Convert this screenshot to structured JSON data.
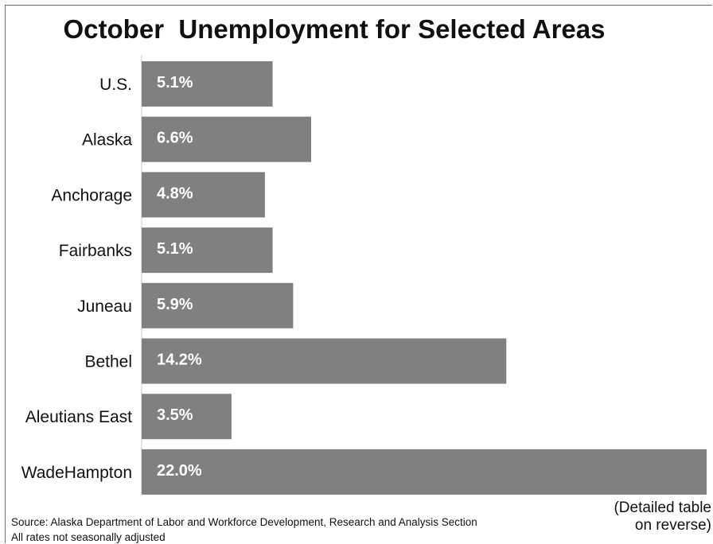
{
  "chart_data": {
    "type": "bar",
    "orientation": "horizontal",
    "title": "October  Unemployment for Selected Areas",
    "categories": [
      "U.S.",
      "Alaska",
      "Anchorage",
      "Fairbanks",
      "Juneau",
      "Bethel",
      "Aleutians East",
      "WadeHampton"
    ],
    "values": [
      5.1,
      6.6,
      4.8,
      5.1,
      5.9,
      14.2,
      3.5,
      22.0
    ],
    "value_labels": [
      "5.1%",
      "6.6%",
      "4.8%",
      "5.1%",
      "5.9%",
      "14.2%",
      "3.5%",
      "22.0%"
    ],
    "xlim": [
      0,
      22.0
    ],
    "grid": false,
    "colors": {
      "bar": "#808080",
      "bar_label": "#ffffff"
    }
  },
  "footer": {
    "source": "Source: Alaska Department of Labor and Workforce Development, Research and Analysis Section",
    "note": "All rates not seasonally adjusted",
    "detail_line1": "(Detailed table",
    "detail_line2": "on reverse)"
  }
}
